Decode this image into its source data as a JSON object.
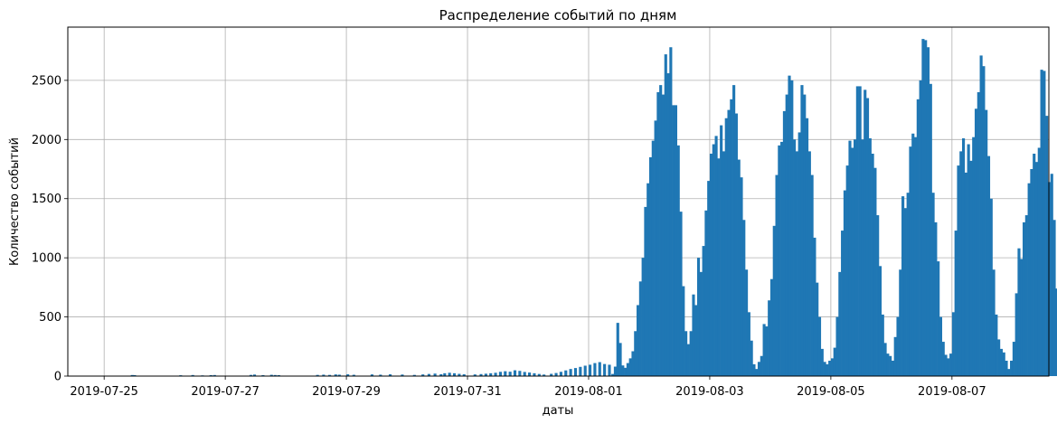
{
  "chart_data": {
    "type": "bar",
    "title": "Распределение событий по дням",
    "xlabel": "даты",
    "ylabel": "Количество событий",
    "grid": true,
    "bar_color": "#1f77b4",
    "grid_color": "#b0b0b0",
    "xlim": [
      -0.3,
      7.8
    ],
    "ylim": [
      0,
      2950
    ],
    "x_ticks": [
      0,
      1,
      2,
      3,
      4,
      5,
      6,
      7
    ],
    "x_tick_labels": [
      "2019-07-25",
      "2019-07-27",
      "2019-07-29",
      "2019-07-31",
      "2019-08-01",
      "2019-08-03",
      "2019-08-05",
      "2019-08-07"
    ],
    "y_ticks": [
      0,
      500,
      1000,
      1500,
      2000,
      2500
    ],
    "y_tick_labels": [
      "0",
      "500",
      "1000",
      "1500",
      "2000",
      "2500"
    ],
    "bin_width": 0.0208,
    "bins": [
      {
        "x": 0.22,
        "y": 9
      },
      {
        "x": 0.24,
        "y": 8
      },
      {
        "x": 0.62,
        "y": 7
      },
      {
        "x": 0.72,
        "y": 9
      },
      {
        "x": 0.8,
        "y": 6
      },
      {
        "x": 0.87,
        "y": 8
      },
      {
        "x": 0.9,
        "y": 9
      },
      {
        "x": 1.2,
        "y": 10
      },
      {
        "x": 1.23,
        "y": 13
      },
      {
        "x": 1.3,
        "y": 8
      },
      {
        "x": 1.37,
        "y": 11
      },
      {
        "x": 1.4,
        "y": 9
      },
      {
        "x": 1.43,
        "y": 8
      },
      {
        "x": 1.75,
        "y": 10
      },
      {
        "x": 1.8,
        "y": 12
      },
      {
        "x": 1.85,
        "y": 10
      },
      {
        "x": 1.9,
        "y": 14
      },
      {
        "x": 1.93,
        "y": 12
      },
      {
        "x": 2.0,
        "y": 15
      },
      {
        "x": 2.05,
        "y": 11
      },
      {
        "x": 2.2,
        "y": 14
      },
      {
        "x": 2.27,
        "y": 12
      },
      {
        "x": 2.35,
        "y": 15
      },
      {
        "x": 2.45,
        "y": 13
      },
      {
        "x": 2.55,
        "y": 10
      },
      {
        "x": 2.62,
        "y": 14
      },
      {
        "x": 2.67,
        "y": 18
      },
      {
        "x": 2.72,
        "y": 21
      },
      {
        "x": 2.77,
        "y": 16
      },
      {
        "x": 2.8,
        "y": 24
      },
      {
        "x": 2.84,
        "y": 28
      },
      {
        "x": 2.88,
        "y": 24
      },
      {
        "x": 2.92,
        "y": 19
      },
      {
        "x": 2.96,
        "y": 15
      },
      {
        "x": 3.05,
        "y": 14
      },
      {
        "x": 3.1,
        "y": 17
      },
      {
        "x": 3.14,
        "y": 20
      },
      {
        "x": 3.18,
        "y": 24
      },
      {
        "x": 3.22,
        "y": 28
      },
      {
        "x": 3.26,
        "y": 36
      },
      {
        "x": 3.3,
        "y": 41
      },
      {
        "x": 3.34,
        "y": 37
      },
      {
        "x": 3.38,
        "y": 49
      },
      {
        "x": 3.42,
        "y": 44
      },
      {
        "x": 3.46,
        "y": 35
      },
      {
        "x": 3.5,
        "y": 30
      },
      {
        "x": 3.54,
        "y": 24
      },
      {
        "x": 3.58,
        "y": 18
      },
      {
        "x": 3.62,
        "y": 13
      },
      {
        "x": 3.68,
        "y": 19
      },
      {
        "x": 3.72,
        "y": 26
      },
      {
        "x": 3.76,
        "y": 36
      },
      {
        "x": 3.8,
        "y": 48
      },
      {
        "x": 3.84,
        "y": 60
      },
      {
        "x": 3.88,
        "y": 68
      },
      {
        "x": 3.92,
        "y": 78
      },
      {
        "x": 3.96,
        "y": 88
      },
      {
        "x": 4.0,
        "y": 96
      },
      {
        "x": 4.04,
        "y": 110
      },
      {
        "x": 4.08,
        "y": 118
      },
      {
        "x": 4.12,
        "y": 102
      },
      {
        "x": 4.16,
        "y": 96
      },
      {
        "x": 4.1875,
        "y": 18
      },
      {
        "x": 4.2083,
        "y": 80
      },
      {
        "x": 4.2292,
        "y": 450
      },
      {
        "x": 4.25,
        "y": 280
      },
      {
        "x": 4.2708,
        "y": 90
      },
      {
        "x": 4.2917,
        "y": 70
      },
      {
        "x": 4.3125,
        "y": 110
      },
      {
        "x": 4.3333,
        "y": 150
      },
      {
        "x": 4.3542,
        "y": 210
      },
      {
        "x": 4.375,
        "y": 380
      },
      {
        "x": 4.3958,
        "y": 600
      },
      {
        "x": 4.4167,
        "y": 800
      },
      {
        "x": 4.4375,
        "y": 1000
      },
      {
        "x": 4.4583,
        "y": 1430
      },
      {
        "x": 4.4792,
        "y": 1630
      },
      {
        "x": 4.5,
        "y": 1850
      },
      {
        "x": 4.5208,
        "y": 1990
      },
      {
        "x": 4.5417,
        "y": 2160
      },
      {
        "x": 4.5625,
        "y": 2400
      },
      {
        "x": 4.5833,
        "y": 2460
      },
      {
        "x": 4.6042,
        "y": 2380
      },
      {
        "x": 4.625,
        "y": 2720
      },
      {
        "x": 4.6458,
        "y": 2560
      },
      {
        "x": 4.6667,
        "y": 2780
      },
      {
        "x": 4.6875,
        "y": 2290
      },
      {
        "x": 4.7083,
        "y": 2290
      },
      {
        "x": 4.7292,
        "y": 1950
      },
      {
        "x": 4.75,
        "y": 1390
      },
      {
        "x": 4.7708,
        "y": 760
      },
      {
        "x": 4.7917,
        "y": 380
      },
      {
        "x": 4.8125,
        "y": 270
      },
      {
        "x": 4.8333,
        "y": 380
      },
      {
        "x": 4.8542,
        "y": 690
      },
      {
        "x": 4.875,
        "y": 600
      },
      {
        "x": 4.8958,
        "y": 1000
      },
      {
        "x": 4.9167,
        "y": 880
      },
      {
        "x": 4.9375,
        "y": 1100
      },
      {
        "x": 4.9583,
        "y": 1400
      },
      {
        "x": 4.9792,
        "y": 1650
      },
      {
        "x": 5.0,
        "y": 1880
      },
      {
        "x": 5.0208,
        "y": 1960
      },
      {
        "x": 5.0417,
        "y": 2030
      },
      {
        "x": 5.0625,
        "y": 1840
      },
      {
        "x": 5.0833,
        "y": 2120
      },
      {
        "x": 5.1042,
        "y": 1900
      },
      {
        "x": 5.125,
        "y": 2180
      },
      {
        "x": 5.1458,
        "y": 2250
      },
      {
        "x": 5.1667,
        "y": 2340
      },
      {
        "x": 5.1875,
        "y": 2460
      },
      {
        "x": 5.2083,
        "y": 2220
      },
      {
        "x": 5.2292,
        "y": 1830
      },
      {
        "x": 5.25,
        "y": 1680
      },
      {
        "x": 5.2708,
        "y": 1320
      },
      {
        "x": 5.2917,
        "y": 900
      },
      {
        "x": 5.3125,
        "y": 540
      },
      {
        "x": 5.3333,
        "y": 300
      },
      {
        "x": 5.3542,
        "y": 100
      },
      {
        "x": 5.375,
        "y": 60
      },
      {
        "x": 5.3958,
        "y": 120
      },
      {
        "x": 5.4167,
        "y": 170
      },
      {
        "x": 5.4375,
        "y": 440
      },
      {
        "x": 5.4583,
        "y": 420
      },
      {
        "x": 5.4792,
        "y": 640
      },
      {
        "x": 5.5,
        "y": 820
      },
      {
        "x": 5.5208,
        "y": 1270
      },
      {
        "x": 5.5417,
        "y": 1700
      },
      {
        "x": 5.5625,
        "y": 1950
      },
      {
        "x": 5.5833,
        "y": 1980
      },
      {
        "x": 5.6042,
        "y": 2240
      },
      {
        "x": 5.625,
        "y": 2380
      },
      {
        "x": 5.6458,
        "y": 2540
      },
      {
        "x": 5.6667,
        "y": 2500
      },
      {
        "x": 5.6875,
        "y": 2000
      },
      {
        "x": 5.7083,
        "y": 1900
      },
      {
        "x": 5.7292,
        "y": 2060
      },
      {
        "x": 5.75,
        "y": 2460
      },
      {
        "x": 5.7708,
        "y": 2380
      },
      {
        "x": 5.7917,
        "y": 2180
      },
      {
        "x": 5.8125,
        "y": 1900
      },
      {
        "x": 5.8333,
        "y": 1700
      },
      {
        "x": 5.8542,
        "y": 1170
      },
      {
        "x": 5.875,
        "y": 790
      },
      {
        "x": 5.8958,
        "y": 500
      },
      {
        "x": 5.9167,
        "y": 230
      },
      {
        "x": 5.9375,
        "y": 120
      },
      {
        "x": 5.9583,
        "y": 100
      },
      {
        "x": 5.9792,
        "y": 130
      },
      {
        "x": 6.0,
        "y": 150
      },
      {
        "x": 6.0208,
        "y": 240
      },
      {
        "x": 6.0417,
        "y": 500
      },
      {
        "x": 6.0625,
        "y": 880
      },
      {
        "x": 6.0833,
        "y": 1230
      },
      {
        "x": 6.1042,
        "y": 1570
      },
      {
        "x": 6.125,
        "y": 1780
      },
      {
        "x": 6.1458,
        "y": 1990
      },
      {
        "x": 6.1667,
        "y": 1930
      },
      {
        "x": 6.1875,
        "y": 2000
      },
      {
        "x": 6.2083,
        "y": 2450
      },
      {
        "x": 6.2292,
        "y": 2450
      },
      {
        "x": 6.25,
        "y": 2000
      },
      {
        "x": 6.2708,
        "y": 2420
      },
      {
        "x": 6.2917,
        "y": 2350
      },
      {
        "x": 6.3125,
        "y": 2010
      },
      {
        "x": 6.3333,
        "y": 1880
      },
      {
        "x": 6.3542,
        "y": 1760
      },
      {
        "x": 6.375,
        "y": 1360
      },
      {
        "x": 6.3958,
        "y": 930
      },
      {
        "x": 6.4167,
        "y": 520
      },
      {
        "x": 6.4375,
        "y": 280
      },
      {
        "x": 6.4583,
        "y": 190
      },
      {
        "x": 6.4792,
        "y": 170
      },
      {
        "x": 6.5,
        "y": 130
      },
      {
        "x": 6.5208,
        "y": 330
      },
      {
        "x": 6.5417,
        "y": 500
      },
      {
        "x": 6.5625,
        "y": 900
      },
      {
        "x": 6.5833,
        "y": 1520
      },
      {
        "x": 6.6042,
        "y": 1420
      },
      {
        "x": 6.625,
        "y": 1550
      },
      {
        "x": 6.6458,
        "y": 1940
      },
      {
        "x": 6.6667,
        "y": 2050
      },
      {
        "x": 6.6875,
        "y": 2020
      },
      {
        "x": 6.7083,
        "y": 2340
      },
      {
        "x": 6.7292,
        "y": 2500
      },
      {
        "x": 6.75,
        "y": 2850
      },
      {
        "x": 6.7708,
        "y": 2840
      },
      {
        "x": 6.7917,
        "y": 2780
      },
      {
        "x": 6.8125,
        "y": 2470
      },
      {
        "x": 6.8333,
        "y": 1550
      },
      {
        "x": 6.8542,
        "y": 1300
      },
      {
        "x": 6.875,
        "y": 970
      },
      {
        "x": 6.8958,
        "y": 500
      },
      {
        "x": 6.9167,
        "y": 290
      },
      {
        "x": 6.9375,
        "y": 180
      },
      {
        "x": 6.9583,
        "y": 150
      },
      {
        "x": 6.9792,
        "y": 190
      },
      {
        "x": 7.0,
        "y": 540
      },
      {
        "x": 7.0208,
        "y": 1230
      },
      {
        "x": 7.0417,
        "y": 1780
      },
      {
        "x": 7.0625,
        "y": 1900
      },
      {
        "x": 7.0833,
        "y": 2010
      },
      {
        "x": 7.1042,
        "y": 1720
      },
      {
        "x": 7.125,
        "y": 1960
      },
      {
        "x": 7.1458,
        "y": 1820
      },
      {
        "x": 7.1667,
        "y": 2020
      },
      {
        "x": 7.1875,
        "y": 2260
      },
      {
        "x": 7.2083,
        "y": 2400
      },
      {
        "x": 7.2292,
        "y": 2710
      },
      {
        "x": 7.25,
        "y": 2620
      },
      {
        "x": 7.2708,
        "y": 2250
      },
      {
        "x": 7.2917,
        "y": 1860
      },
      {
        "x": 7.3125,
        "y": 1500
      },
      {
        "x": 7.3333,
        "y": 900
      },
      {
        "x": 7.3542,
        "y": 520
      },
      {
        "x": 7.375,
        "y": 310
      },
      {
        "x": 7.3958,
        "y": 230
      },
      {
        "x": 7.4167,
        "y": 200
      },
      {
        "x": 7.4375,
        "y": 130
      },
      {
        "x": 7.4583,
        "y": 60
      },
      {
        "x": 7.4792,
        "y": 130
      },
      {
        "x": 7.5,
        "y": 290
      },
      {
        "x": 7.5208,
        "y": 700
      },
      {
        "x": 7.5417,
        "y": 1080
      },
      {
        "x": 7.5625,
        "y": 990
      },
      {
        "x": 7.5833,
        "y": 1300
      },
      {
        "x": 7.6042,
        "y": 1360
      },
      {
        "x": 7.625,
        "y": 1630
      },
      {
        "x": 7.6458,
        "y": 1750
      },
      {
        "x": 7.6667,
        "y": 1880
      },
      {
        "x": 7.6875,
        "y": 1810
      },
      {
        "x": 7.7083,
        "y": 1930
      },
      {
        "x": 7.7292,
        "y": 2590
      },
      {
        "x": 7.75,
        "y": 2580
      },
      {
        "x": 7.7708,
        "y": 2200
      },
      {
        "x": 7.7917,
        "y": 1640
      },
      {
        "x": 7.8125,
        "y": 1710
      },
      {
        "x": 7.8333,
        "y": 1320
      },
      {
        "x": 7.8542,
        "y": 740
      }
    ]
  }
}
